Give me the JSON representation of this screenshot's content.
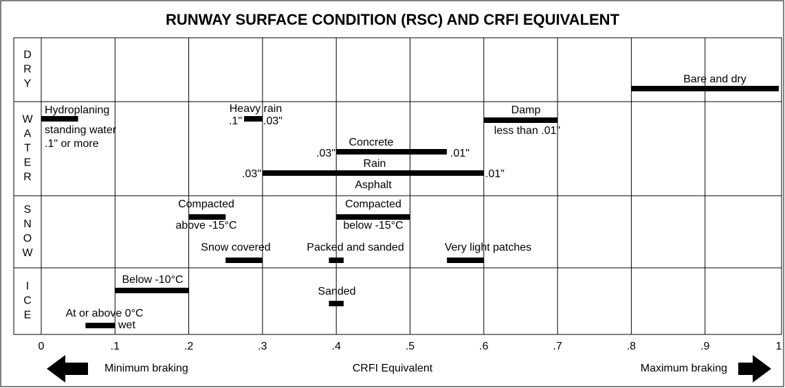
{
  "chart_data": {
    "type": "range_bar",
    "title": "RUNWAY SURFACE CONDITION (RSC) AND CRFI EQUIVALENT",
    "rows": [
      "DRY",
      "WATER",
      "SNOW",
      "ICE"
    ],
    "xlim": [
      0,
      1
    ],
    "xticks": [
      0,
      {
        "value": 0.1,
        "label": ".1"
      },
      {
        "value": 0.2,
        "label": ".2"
      },
      {
        "value": 0.3,
        "label": ".3"
      },
      {
        "value": 0.4,
        "label": ".4"
      },
      {
        "value": 0.5,
        "label": ".5"
      },
      {
        "value": 0.6,
        "label": ".6"
      },
      {
        "value": 0.7,
        "label": ".7"
      },
      {
        "value": 0.8,
        "label": ".8"
      },
      {
        "value": 0.9,
        "label": ".9"
      },
      1
    ],
    "xlabel": "CRFI Equivalent",
    "left_label": "Minimum braking",
    "right_label": "Maximum braking",
    "grid": true,
    "color": "#000000",
    "bars": [
      {
        "row": "DRY",
        "start": 0.8,
        "end": 1.0,
        "labels": [
          "Bare and dry"
        ]
      },
      {
        "row": "WATER",
        "start": 0,
        "end": 0.05,
        "labels": [
          "Hydroplaning",
          "standing water",
          ".1\" or more"
        ]
      },
      {
        "row": "WATER",
        "start": 0.275,
        "end": 0.3,
        "labels": [
          "Heavy rain",
          ".1\"",
          ".03\""
        ]
      },
      {
        "row": "WATER",
        "start": 0.6,
        "end": 0.7,
        "labels": [
          "Damp",
          "less than .01\""
        ]
      },
      {
        "row": "WATER",
        "start": 0.4,
        "end": 0.55,
        "labels": [
          "Concrete",
          ".03\"",
          ".01\""
        ]
      },
      {
        "row": "WATER",
        "start": 0.3,
        "end": 0.6,
        "labels": [
          "Rain",
          "Asphalt",
          ".03\"",
          ".01\""
        ]
      },
      {
        "row": "SNOW",
        "start": 0.2,
        "end": 0.25,
        "labels": [
          "Compacted",
          "above -15°C"
        ]
      },
      {
        "row": "SNOW",
        "start": 0.4,
        "end": 0.5,
        "labels": [
          "Compacted",
          "below -15°C"
        ]
      },
      {
        "row": "SNOW",
        "start": 0.25,
        "end": 0.3,
        "labels": [
          "Snow covered"
        ]
      },
      {
        "row": "SNOW",
        "start": 0.39,
        "end": 0.41,
        "labels": [
          "Packed and sanded"
        ]
      },
      {
        "row": "SNOW",
        "start": 0.55,
        "end": 0.6,
        "labels": [
          "Very light patches"
        ]
      },
      {
        "row": "ICE",
        "start": 0.1,
        "end": 0.2,
        "labels": [
          "Below -10°C"
        ]
      },
      {
        "row": "ICE",
        "start": 0.39,
        "end": 0.41,
        "labels": [
          "Sanded"
        ]
      },
      {
        "row": "ICE",
        "start": 0.06,
        "end": 0.1,
        "labels": [
          "At or above 0°C",
          "wet"
        ]
      }
    ]
  }
}
